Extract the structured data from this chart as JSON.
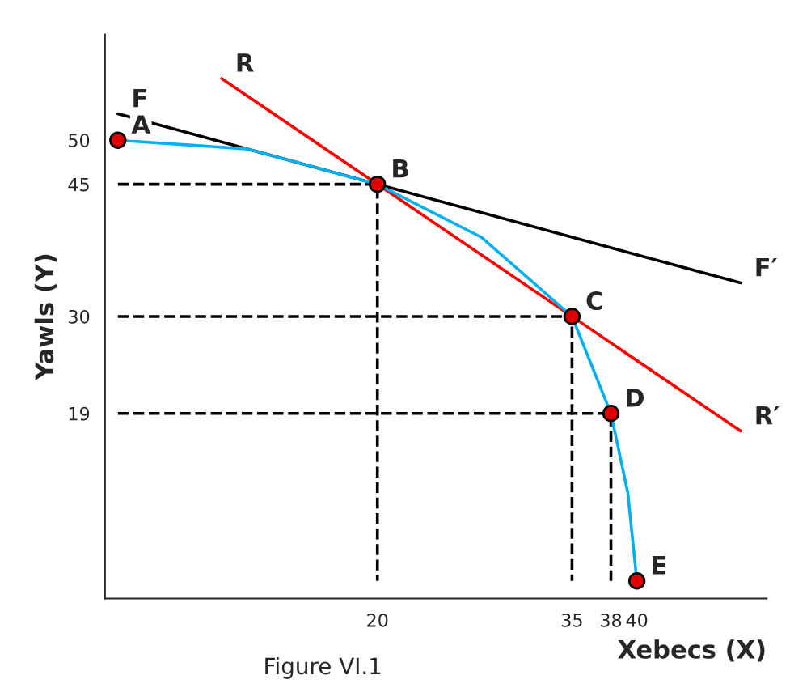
{
  "chart_data": {
    "type": "line",
    "xlabel": "Xebecs (X)",
    "ylabel": "Yawls (Y)",
    "xlim": [
      -1,
      50
    ],
    "ylim": [
      -2,
      62
    ],
    "xticks": [
      20,
      35,
      38,
      40
    ],
    "yticks": [
      19,
      30,
      45,
      50
    ],
    "grid": false,
    "series": [
      {
        "type": "line",
        "color": "#000000",
        "line_style": "dashed",
        "x": [
          0,
          20,
          20
        ],
        "values": [
          45,
          45,
          0
        ]
      },
      {
        "type": "line",
        "color": "#000000",
        "line_style": "dashed",
        "x": [
          0,
          35,
          35
        ],
        "values": [
          30,
          30,
          0
        ]
      },
      {
        "type": "line",
        "color": "#000000",
        "line_style": "dashed",
        "x": [
          0,
          38,
          38
        ],
        "values": [
          19,
          19,
          0
        ]
      },
      {
        "type": "line",
        "color": "#000000",
        "line_style": "solid",
        "x": [
          0,
          48
        ],
        "values": [
          53,
          33.8
        ]
      },
      {
        "type": "line",
        "color": "#ff0000",
        "line_style": "solid",
        "x": [
          8,
          48
        ],
        "values": [
          57,
          17
        ]
      },
      {
        "color": "#00b0f0",
        "line_style": "solid",
        "x": [
          0,
          10,
          20,
          28,
          35,
          38,
          39.3,
          40
        ],
        "values": [
          50,
          49,
          45,
          39,
          30,
          19,
          10,
          0
        ]
      },
      {
        "type": "scatter",
        "color": "#e00000",
        "marker": "circle",
        "x": [
          0,
          20,
          35,
          38,
          40
        ],
        "values": [
          50,
          45,
          30,
          19,
          0
        ]
      }
    ],
    "annotations": [
      {
        "text": "A",
        "x": 0,
        "y": 50
      },
      {
        "text": "B",
        "x": 20,
        "y": 45
      },
      {
        "text": "C",
        "x": 35,
        "y": 30
      },
      {
        "text": "D",
        "x": 38,
        "y": 19
      },
      {
        "text": "E",
        "x": 40,
        "y": 0
      },
      {
        "text": "F",
        "x": 0,
        "y": 53
      },
      {
        "text": "F′",
        "x": 48,
        "y": 33.8
      },
      {
        "text": "R",
        "x": 8,
        "y": 57
      },
      {
        "text": "R′",
        "x": 48,
        "y": 17
      },
      "Figure VI.1"
    ]
  }
}
